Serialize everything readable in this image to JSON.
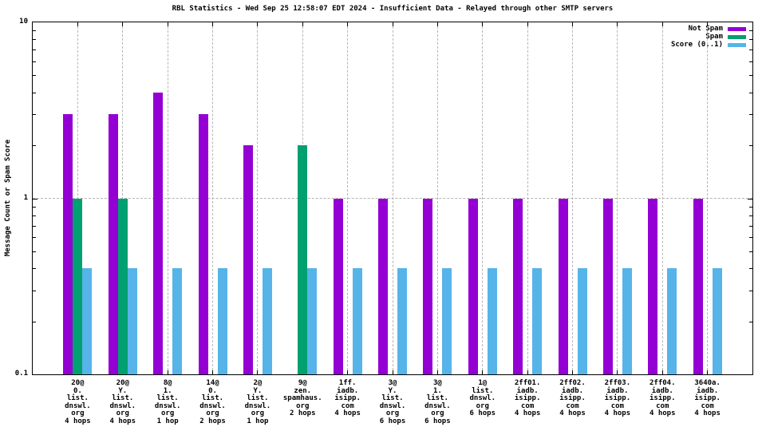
{
  "chart_data": {
    "type": "bar",
    "title": "RBL Statistics - Wed Sep 25 12:58:07 EDT 2024 - Insufficient Data - Relayed through other SMTP servers",
    "xlabel": "",
    "ylabel": "Message Count or Spam Score",
    "yscale": "log",
    "ylim": [
      0.1,
      10
    ],
    "grid": true,
    "legend_position": "top-right",
    "yticks": [
      {
        "value": 10,
        "label": "10"
      },
      {
        "value": 1,
        "label": "1"
      },
      {
        "value": 0.1,
        "label": "0.1"
      }
    ],
    "categories": [
      [
        "20@",
        "0.",
        "list.",
        "dnswl.",
        "org",
        "4 hops"
      ],
      [
        "20@",
        "Y.",
        "list.",
        "dnswl.",
        "org",
        "4 hops"
      ],
      [
        "8@",
        "1.",
        "list.",
        "dnswl.",
        "org",
        "1 hop"
      ],
      [
        "14@",
        "0.",
        "list.",
        "dnswl.",
        "org",
        "2 hops"
      ],
      [
        "2@",
        "Y.",
        "list.",
        "dnswl.",
        "org",
        "1 hop"
      ],
      [
        "9@",
        "zen.",
        "spamhaus.",
        "org",
        "2 hops"
      ],
      [
        "1ff.",
        "iadb.",
        "isipp.",
        "com",
        "4 hops"
      ],
      [
        "3@",
        "Y.",
        "list.",
        "dnswl.",
        "org",
        "6 hops"
      ],
      [
        "3@",
        "1.",
        "list.",
        "dnswl.",
        "org",
        "6 hops"
      ],
      [
        "1@",
        "list.",
        "dnswl.",
        "org",
        "6 hops"
      ],
      [
        "2ff01.",
        "iadb.",
        "isipp.",
        "com",
        "4 hops"
      ],
      [
        "2ff02.",
        "iadb.",
        "isipp.",
        "com",
        "4 hops"
      ],
      [
        "2ff03.",
        "iadb.",
        "isipp.",
        "com",
        "4 hops"
      ],
      [
        "2ff04.",
        "iadb.",
        "isipp.",
        "com",
        "4 hops"
      ],
      [
        "3640a.",
        "iadb.",
        "isipp.",
        "com",
        "4 hops"
      ]
    ],
    "series": [
      {
        "name": "Not Spam",
        "color": "#9400d3",
        "values": [
          3,
          3,
          4,
          3,
          2,
          null,
          1,
          1,
          1,
          1,
          1,
          1,
          1,
          1,
          1
        ]
      },
      {
        "name": "Spam",
        "color": "#00a070",
        "values": [
          1,
          1,
          null,
          null,
          null,
          2,
          null,
          null,
          null,
          null,
          null,
          null,
          null,
          null,
          null
        ]
      },
      {
        "name": "Score (0..1)",
        "color": "#56b4e9",
        "values": [
          0.4,
          0.4,
          0.4,
          0.4,
          0.4,
          0.4,
          0.4,
          0.4,
          0.4,
          0.4,
          0.4,
          0.4,
          0.4,
          0.4,
          0.4
        ]
      }
    ]
  }
}
